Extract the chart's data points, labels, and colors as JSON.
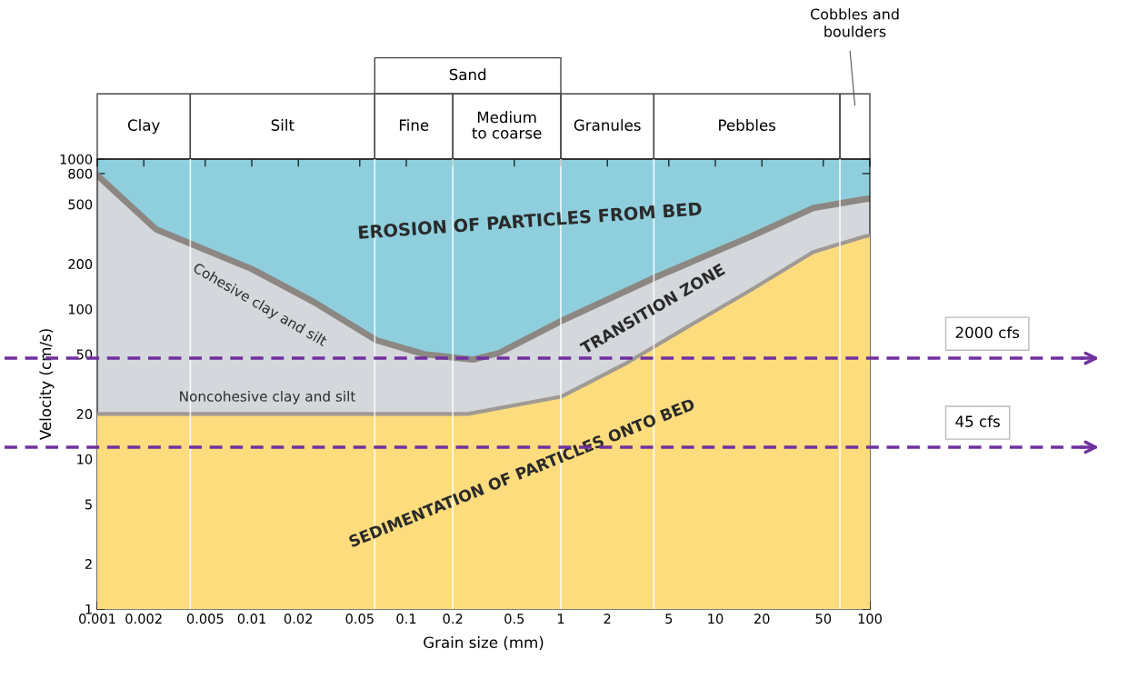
{
  "chart_data": {
    "type": "area",
    "xlabel": "Grain size (mm)",
    "ylabel": "Velocity (cm/s)",
    "log": "xy",
    "xlim": [
      0.001,
      100
    ],
    "ylim": [
      1,
      1000
    ],
    "xticks": [
      0.001,
      0.002,
      0.005,
      0.01,
      0.02,
      0.05,
      0.1,
      0.2,
      0.5,
      1,
      2,
      5,
      10,
      20,
      50,
      100
    ],
    "yticks": [
      1,
      2,
      5,
      10,
      20,
      50,
      100,
      200,
      500,
      800,
      1000
    ],
    "grid": false,
    "series": [
      {
        "name": "TRANSITION ZONE",
        "color": "#d4d7db",
        "x": [
          0.001,
          0.0024,
          0.01,
          0.025,
          0.064,
          0.13,
          0.27,
          0.4,
          1,
          4.1,
          17,
          43,
          93,
          100
        ],
        "values": [
          780,
          340,
          185,
          112,
          62,
          50,
          46,
          51,
          83,
          163,
          305,
          471,
          541,
          545
        ]
      },
      {
        "name": "SEDIMENTATION OF PARTICLES ONTO BED",
        "color": "#fddc7e",
        "x": [
          0.001,
          0.25,
          1,
          2.6,
          6.6,
          17,
          43,
          93,
          100
        ],
        "values": [
          20,
          20,
          26,
          43,
          76,
          134,
          240,
          305,
          310
        ]
      }
    ],
    "bands": [
      {
        "axis": "y",
        "from": 1,
        "to": 1000,
        "label": "EROSION OF PARTICLES FROM BED",
        "color": "#8fcfdd"
      }
    ],
    "ref_lines": [
      {
        "axis": "x",
        "value": 0.004,
        "color": "#ffffff",
        "line_style": "solid"
      },
      {
        "axis": "x",
        "value": 0.0625,
        "color": "#ffffff",
        "line_style": "solid"
      },
      {
        "axis": "x",
        "value": 0.2,
        "color": "#ffffff",
        "line_style": "solid"
      },
      {
        "axis": "x",
        "value": 1,
        "color": "#ffffff",
        "line_style": "solid"
      },
      {
        "axis": "x",
        "value": 4,
        "color": "#ffffff",
        "line_style": "solid"
      },
      {
        "axis": "x",
        "value": 64,
        "color": "#ffffff",
        "line_style": "solid"
      },
      {
        "axis": "y",
        "value": 47,
        "label": "2000 cfs",
        "color": "#7030a0",
        "line_style": "dashed"
      },
      {
        "axis": "y",
        "value": 12,
        "label": "45 cfs",
        "color": "#7030a0",
        "line_style": "dashed"
      }
    ],
    "annotations": [
      "Cohesive clay and silt",
      "Noncohesive clay and silt",
      "Clay",
      "Silt",
      "Fine",
      "Medium\nto coarse",
      "Granules",
      "Pebbles",
      "Cobbles and\nboulders",
      "Sand"
    ]
  }
}
